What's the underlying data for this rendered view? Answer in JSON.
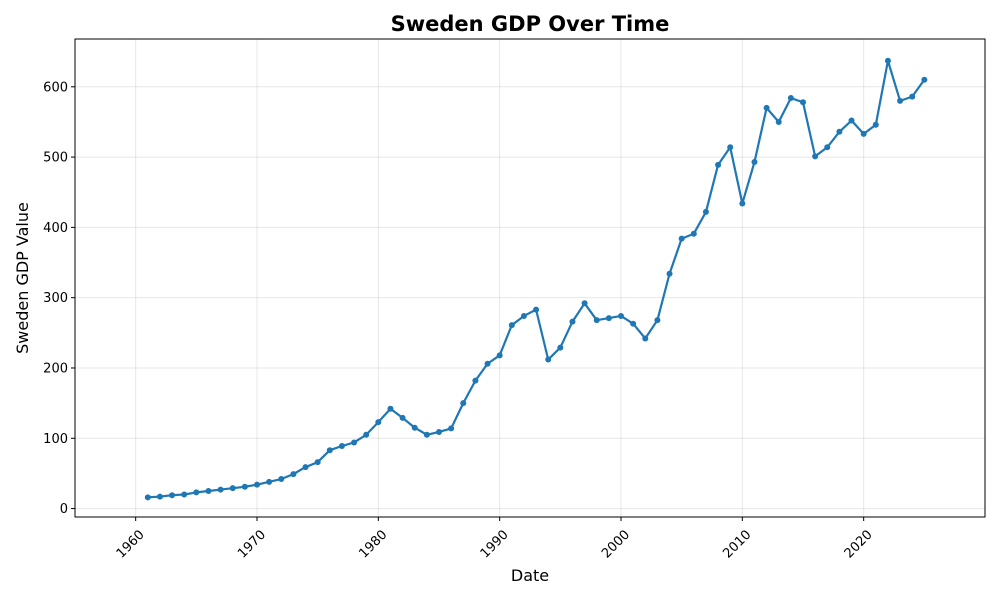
{
  "chart_data": {
    "type": "line",
    "title": "Sweden GDP Over Time",
    "xlabel": "Date",
    "ylabel": "Sweden GDP Value",
    "xlim": [
      1955,
      2030
    ],
    "ylim": [
      -12,
      668
    ],
    "x_ticks": [
      1960,
      1970,
      1980,
      1990,
      2000,
      2010,
      2020
    ],
    "y_ticks": [
      0,
      100,
      200,
      300,
      400,
      500,
      600
    ],
    "grid": true,
    "line_color": "#1f77b4",
    "series": [
      {
        "x": [
          1961,
          1962,
          1963,
          1964,
          1965,
          1966,
          1967,
          1968,
          1969,
          1970,
          1971,
          1972,
          1973,
          1974,
          1975,
          1976,
          1977,
          1978,
          1979,
          1980,
          1981,
          1982,
          1983,
          1984,
          1985,
          1986,
          1987,
          1988,
          1989,
          1990,
          1991,
          1992,
          1993,
          1994,
          1995,
          1996,
          1997,
          1998,
          1999,
          2000,
          2001,
          2002,
          2003,
          2004,
          2005,
          2006,
          2007,
          2008,
          2009,
          2010,
          2011,
          2012,
          2013,
          2014,
          2015,
          2016,
          2017,
          2018,
          2019,
          2020,
          2021,
          2022,
          2023,
          2024,
          2025
        ],
        "values": [
          16,
          17,
          19,
          20,
          23,
          25,
          27,
          29,
          31,
          34,
          38,
          42,
          49,
          59,
          66,
          83,
          89,
          94,
          105,
          123,
          142,
          129,
          115,
          105,
          109,
          114,
          150,
          182,
          206,
          218,
          261,
          274,
          283,
          212,
          229,
          266,
          292,
          268,
          271,
          274,
          263,
          242,
          268,
          334,
          384,
          391,
          422,
          489,
          514,
          434,
          493,
          570,
          550,
          584,
          578,
          501,
          514,
          536,
          552,
          533,
          546,
          637,
          580,
          586,
          610
        ]
      }
    ]
  }
}
